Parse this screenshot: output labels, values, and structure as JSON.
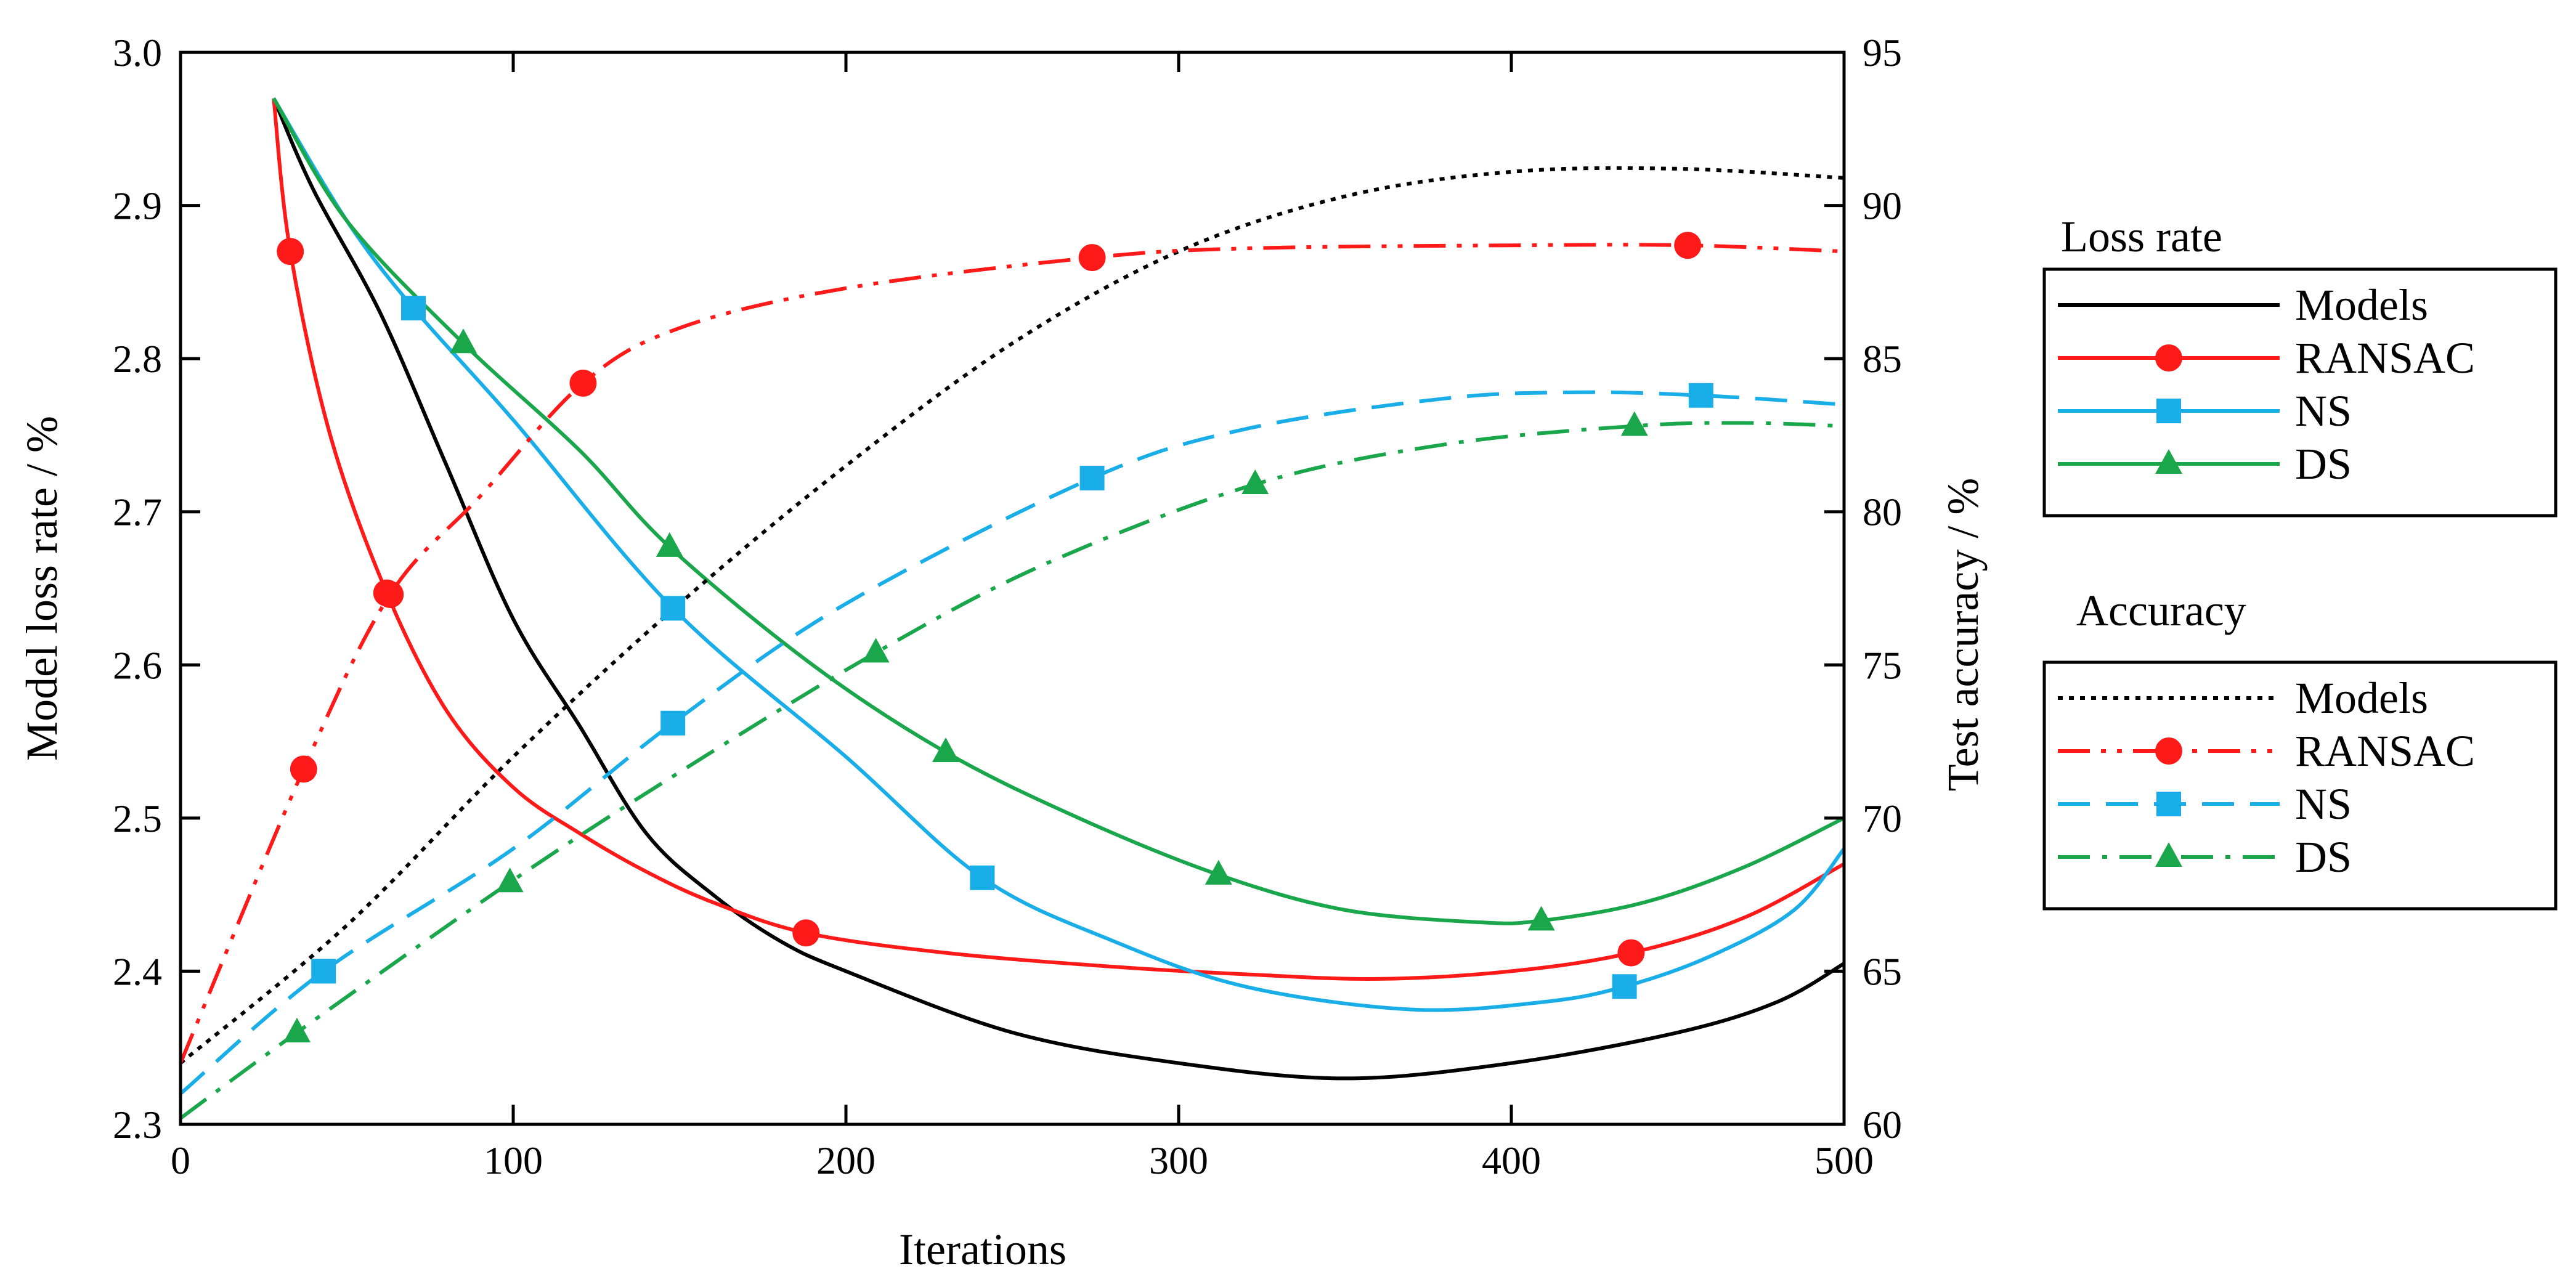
{
  "chart_data": {
    "type": "line",
    "xlabel": "Iterations",
    "ylabel_left": "Model loss rate / %",
    "ylabel_right": "Test accuracy / %",
    "xlim": [
      0,
      500
    ],
    "ylim_left": [
      2.3,
      3.0
    ],
    "ylim_right": [
      60,
      95
    ],
    "x_ticks": [
      0,
      100,
      200,
      300,
      400,
      500
    ],
    "y_left_ticks": [
      "2.3",
      "2.4",
      "2.5",
      "2.6",
      "2.7",
      "2.8",
      "2.9",
      "3.0"
    ],
    "y_right_ticks": [
      "60",
      "65",
      "70",
      "75",
      "80",
      "85",
      "90",
      "95"
    ],
    "grid": false,
    "legend_groups": [
      {
        "title": "Loss rate",
        "entries": [
          {
            "series": "loss_models",
            "label": "Models"
          },
          {
            "series": "loss_ransac",
            "label": "RANSAC"
          },
          {
            "series": "loss_ns",
            "label": "NS"
          },
          {
            "series": "loss_ds",
            "label": "DS"
          }
        ]
      },
      {
        "title": "Accuracy",
        "entries": [
          {
            "series": "acc_models",
            "label": "Models"
          },
          {
            "series": "acc_ransac",
            "label": "RANSAC"
          },
          {
            "series": "acc_ns",
            "label": "NS"
          },
          {
            "series": "acc_ds",
            "label": "DS"
          }
        ]
      }
    ],
    "series": [
      {
        "id": "loss_models",
        "axis": "left",
        "color": "#000000",
        "dash": "solid",
        "marker": "none",
        "x": [
          28,
          40,
          60,
          80,
          100,
          120,
          140,
          160,
          180,
          200,
          250,
          300,
          350,
          400,
          450,
          480,
          500
        ],
        "y": [
          2.97,
          2.91,
          2.83,
          2.73,
          2.63,
          2.56,
          2.49,
          2.45,
          2.42,
          2.4,
          2.36,
          2.34,
          2.33,
          2.34,
          2.36,
          2.38,
          2.405
        ],
        "marker_x": []
      },
      {
        "id": "loss_ransac",
        "axis": "left",
        "color": "#ff1a1a",
        "dash": "solid",
        "marker": "circle",
        "x": [
          28,
          33,
          45,
          62,
          80,
          100,
          120,
          140,
          160,
          188,
          230,
          280,
          320,
          360,
          400,
          436,
          470,
          500
        ],
        "y": [
          2.97,
          2.87,
          2.75,
          2.647,
          2.57,
          2.52,
          2.49,
          2.465,
          2.445,
          2.425,
          2.412,
          2.403,
          2.398,
          2.395,
          2.4,
          2.412,
          2.435,
          2.47
        ],
        "marker_x": [
          33,
          62,
          188,
          436
        ]
      },
      {
        "id": "loss_ns",
        "axis": "left",
        "color": "#1aaee8",
        "dash": "solid",
        "marker": "square",
        "x": [
          28,
          50,
          70,
          100,
          148,
          200,
          241,
          280,
          320,
          370,
          410,
          434,
          460,
          485,
          500
        ],
        "y": [
          2.97,
          2.89,
          2.833,
          2.76,
          2.637,
          2.54,
          2.461,
          2.42,
          2.39,
          2.375,
          2.38,
          2.39,
          2.41,
          2.44,
          2.48
        ],
        "marker_x": [
          70,
          148,
          241,
          434
        ]
      },
      {
        "id": "loss_ds",
        "axis": "left",
        "color": "#1aa64a",
        "dash": "solid",
        "marker": "triangle",
        "x": [
          28,
          50,
          85,
          120,
          147,
          190,
          230,
          270,
          312,
          350,
          390,
          409,
          440,
          470,
          500
        ],
        "y": [
          2.97,
          2.89,
          2.81,
          2.74,
          2.677,
          2.6,
          2.543,
          2.5,
          2.463,
          2.44,
          2.432,
          2.433,
          2.445,
          2.468,
          2.5
        ],
        "marker_x": [
          85,
          147,
          230,
          312,
          409
        ]
      },
      {
        "id": "acc_models",
        "axis": "right",
        "color": "#000000",
        "dash": "dotted",
        "marker": "none",
        "x": [
          0,
          50,
          100,
          150,
          200,
          250,
          300,
          350,
          400,
          450,
          500
        ],
        "y": [
          62.0,
          66.5,
          72.0,
          77.0,
          81.5,
          85.5,
          88.5,
          90.3,
          91.1,
          91.2,
          90.9
        ],
        "marker_x": []
      },
      {
        "id": "acc_ransac",
        "axis": "right",
        "color": "#ff1a1a",
        "dash": "dashdotdot",
        "marker": "circle",
        "x": [
          0,
          37,
          63,
          90,
          121,
          150,
          200,
          274,
          320,
          400,
          453,
          500
        ],
        "y": [
          62.0,
          71.6,
          77.3,
          80.5,
          84.2,
          86.0,
          87.3,
          88.3,
          88.6,
          88.7,
          88.7,
          88.5
        ],
        "marker_x": [
          37,
          63,
          121,
          274,
          453
        ]
      },
      {
        "id": "acc_ns",
        "axis": "right",
        "color": "#1aaee8",
        "dash": "dashed",
        "marker": "square",
        "x": [
          0,
          43,
          100,
          148,
          200,
          274,
          320,
          380,
          420,
          457,
          500
        ],
        "y": [
          61.0,
          65.0,
          69.0,
          73.1,
          77.0,
          81.1,
          82.7,
          83.7,
          83.9,
          83.8,
          83.5
        ],
        "marker_x": [
          43,
          148,
          274,
          457
        ]
      },
      {
        "id": "acc_ds",
        "axis": "right",
        "color": "#1aa64a",
        "dash": "dashdot",
        "marker": "triangle",
        "x": [
          0,
          35,
          99,
          150,
          209,
          260,
          323,
          380,
          437,
          470,
          500
        ],
        "y": [
          60.2,
          63.0,
          67.9,
          71.5,
          75.4,
          78.3,
          80.9,
          82.2,
          82.8,
          82.9,
          82.8
        ],
        "marker_x": [
          35,
          99,
          209,
          323,
          437
        ]
      }
    ]
  }
}
